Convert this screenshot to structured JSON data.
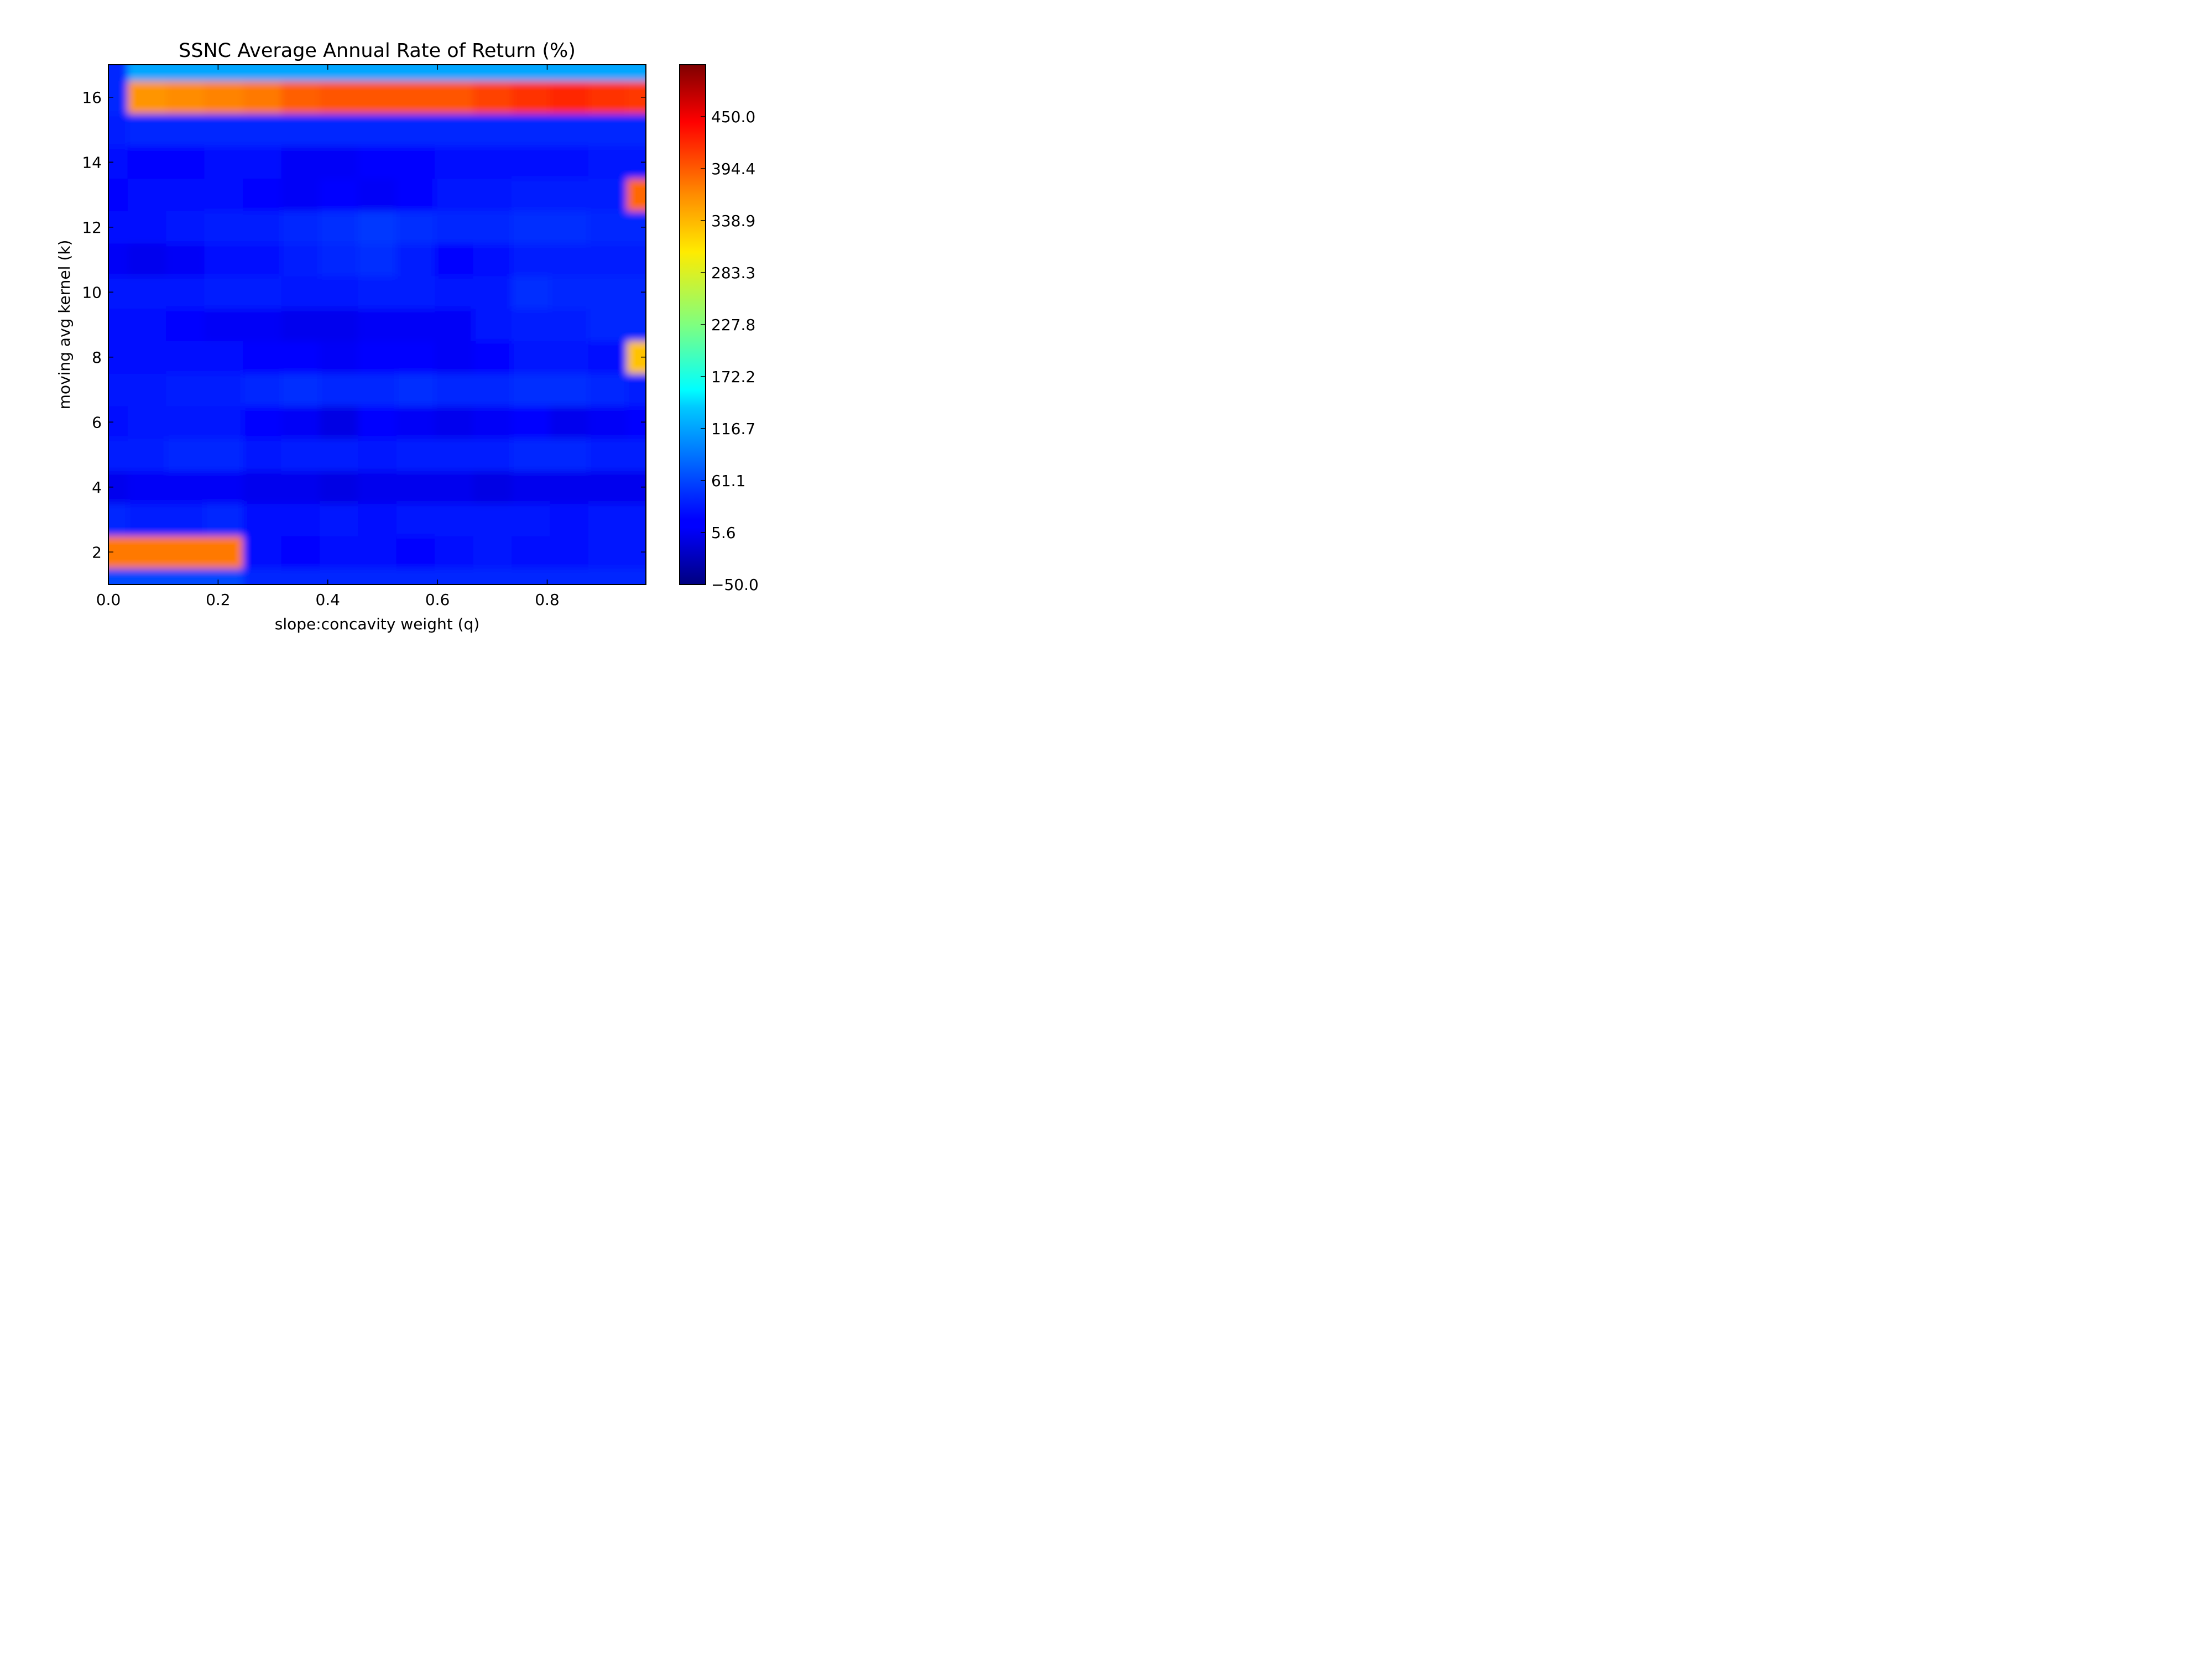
{
  "chart_data": {
    "type": "heatmap",
    "title": "SSNC Average Annual Rate of Return (%)",
    "xlabel": "slope:concavity weight (q)",
    "ylabel": "moving avg kernel (k)",
    "xlim": [
      0,
      0.98
    ],
    "ylim": [
      1,
      17
    ],
    "x_ticks": [
      0.0,
      0.2,
      0.4,
      0.6,
      0.8
    ],
    "x_tick_labels": [
      "0.0",
      "0.2",
      "0.4",
      "0.6",
      "0.8"
    ],
    "y_ticks": [
      2,
      4,
      6,
      8,
      10,
      12,
      14,
      16
    ],
    "y_tick_labels": [
      "2",
      "4",
      "6",
      "8",
      "10",
      "12",
      "14",
      "16"
    ],
    "colorbar": {
      "range": [
        -50,
        505.6
      ],
      "colormap": "jet",
      "ticks": [
        -50.0,
        5.6,
        61.1,
        116.7,
        172.2,
        227.8,
        283.3,
        338.9,
        394.4,
        450.0
      ],
      "tick_labels": [
        "−50.0",
        "5.6",
        "61.1",
        "116.7",
        "172.2",
        "227.8",
        "283.3",
        "338.9",
        "394.4",
        "450.0"
      ]
    },
    "grid": false,
    "q_values": [
      0.0,
      0.07,
      0.14,
      0.21,
      0.28,
      0.35,
      0.42,
      0.49,
      0.56,
      0.63,
      0.7,
      0.77,
      0.84,
      0.91,
      0.98
    ],
    "k_values": [
      1,
      2,
      3,
      4,
      5,
      6,
      7,
      8,
      9,
      10,
      11,
      12,
      13,
      14,
      15,
      16,
      17
    ],
    "z": [
      [
        60,
        60,
        60,
        60,
        40,
        40,
        40,
        40,
        40,
        40,
        40,
        40,
        40,
        40,
        40
      ],
      [
        370,
        370,
        370,
        370,
        25,
        20,
        25,
        25,
        20,
        25,
        30,
        25,
        25,
        30,
        30
      ],
      [
        40,
        35,
        35,
        40,
        25,
        25,
        30,
        25,
        30,
        30,
        30,
        30,
        25,
        30,
        30
      ],
      [
        10,
        15,
        15,
        15,
        10,
        10,
        5,
        10,
        10,
        10,
        5,
        10,
        10,
        10,
        10
      ],
      [
        35,
        35,
        40,
        40,
        30,
        35,
        35,
        30,
        35,
        35,
        35,
        40,
        40,
        35,
        35
      ],
      [
        25,
        30,
        30,
        30,
        20,
        15,
        5,
        20,
        15,
        10,
        15,
        20,
        10,
        15,
        20
      ],
      [
        30,
        30,
        35,
        35,
        40,
        45,
        40,
        40,
        45,
        40,
        40,
        45,
        45,
        40,
        35
      ],
      [
        25,
        25,
        25,
        25,
        20,
        20,
        15,
        20,
        20,
        15,
        20,
        30,
        30,
        25,
        330
      ],
      [
        25,
        25,
        20,
        15,
        15,
        10,
        10,
        15,
        15,
        15,
        30,
        35,
        35,
        40,
        40
      ],
      [
        30,
        30,
        30,
        35,
        35,
        30,
        30,
        35,
        35,
        30,
        30,
        45,
        40,
        40,
        40
      ],
      [
        15,
        10,
        15,
        25,
        25,
        35,
        40,
        45,
        35,
        20,
        25,
        35,
        35,
        35,
        35
      ],
      [
        25,
        25,
        30,
        35,
        35,
        40,
        45,
        50,
        45,
        40,
        40,
        45,
        45,
        40,
        40
      ],
      [
        20,
        25,
        25,
        25,
        20,
        15,
        20,
        15,
        20,
        30,
        30,
        35,
        35,
        35,
        380
      ],
      [
        25,
        20,
        20,
        25,
        25,
        15,
        15,
        20,
        20,
        25,
        25,
        25,
        25,
        30,
        30
      ],
      [
        35,
        40,
        40,
        40,
        40,
        40,
        40,
        40,
        40,
        40,
        40,
        40,
        40,
        40,
        40
      ],
      [
        40,
        355,
        360,
        365,
        370,
        385,
        390,
        390,
        390,
        390,
        400,
        410,
        415,
        410,
        405
      ],
      [
        40,
        110,
        110,
        110,
        110,
        110,
        110,
        110,
        110,
        110,
        110,
        110,
        110,
        110,
        110
      ]
    ]
  }
}
